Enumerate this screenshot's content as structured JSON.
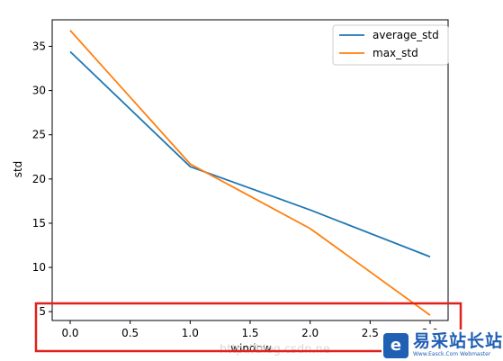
{
  "chart_data": {
    "type": "line",
    "title": "",
    "xlabel": "window",
    "ylabel": "std",
    "xlim": [
      -0.15,
      3.15
    ],
    "ylim": [
      4.0,
      38.0
    ],
    "xticks": [
      "0.0",
      "0.5",
      "1.0",
      "1.5",
      "2.0",
      "2.5",
      "3.0"
    ],
    "yticks": [
      "5",
      "10",
      "15",
      "20",
      "25",
      "30",
      "35"
    ],
    "grid": false,
    "legend_position": "upper right",
    "series": [
      {
        "name": "average_std",
        "color": "#1f77b4",
        "x": [
          0,
          1,
          2,
          3
        ],
        "y": [
          34.4,
          21.4,
          16.5,
          11.2
        ]
      },
      {
        "name": "max_std",
        "color": "#ff7f0e",
        "x": [
          0,
          1,
          2,
          3
        ],
        "y": [
          36.8,
          21.7,
          14.4,
          4.6
        ]
      }
    ]
  },
  "annotation": {
    "box_color": "#e0201c"
  },
  "watermark": {
    "text": "http://blog.csdn.ne"
  },
  "logo": {
    "icon": "e-logo-icon",
    "text": "易采站长站",
    "subtext": "Www.Easck.Com Webmaster"
  }
}
